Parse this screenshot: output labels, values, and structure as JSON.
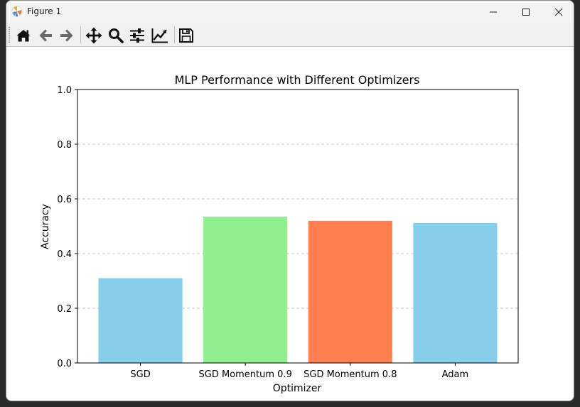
{
  "window": {
    "title": "Figure 1"
  },
  "toolbar": {
    "tools": [
      "home-icon",
      "back-arrow-icon",
      "forward-arrow-icon",
      "pan-icon",
      "zoom-icon",
      "configure-subplots-icon",
      "edit-axis-icon",
      "save-icon"
    ]
  },
  "chart_data": {
    "type": "bar",
    "title": "MLP Performance with Different Optimizers",
    "xlabel": "Optimizer",
    "ylabel": "Accuracy",
    "categories": [
      "SGD",
      "SGD Momentum 0.9",
      "SGD Momentum 0.8",
      "Adam"
    ],
    "values": [
      0.31,
      0.535,
      0.52,
      0.512
    ],
    "colors": [
      "#87ceeb",
      "#90ee90",
      "#ff7f50",
      "#87ceeb"
    ],
    "ylim": [
      0,
      1.0
    ],
    "yticks": [
      0.0,
      0.2,
      0.4,
      0.6,
      0.8,
      1.0
    ],
    "ytick_labels": [
      "0.0",
      "0.2",
      "0.4",
      "0.6",
      "0.8",
      "1.0"
    ],
    "grid": "y-dashed",
    "grid_color": "#c8c8c8"
  }
}
